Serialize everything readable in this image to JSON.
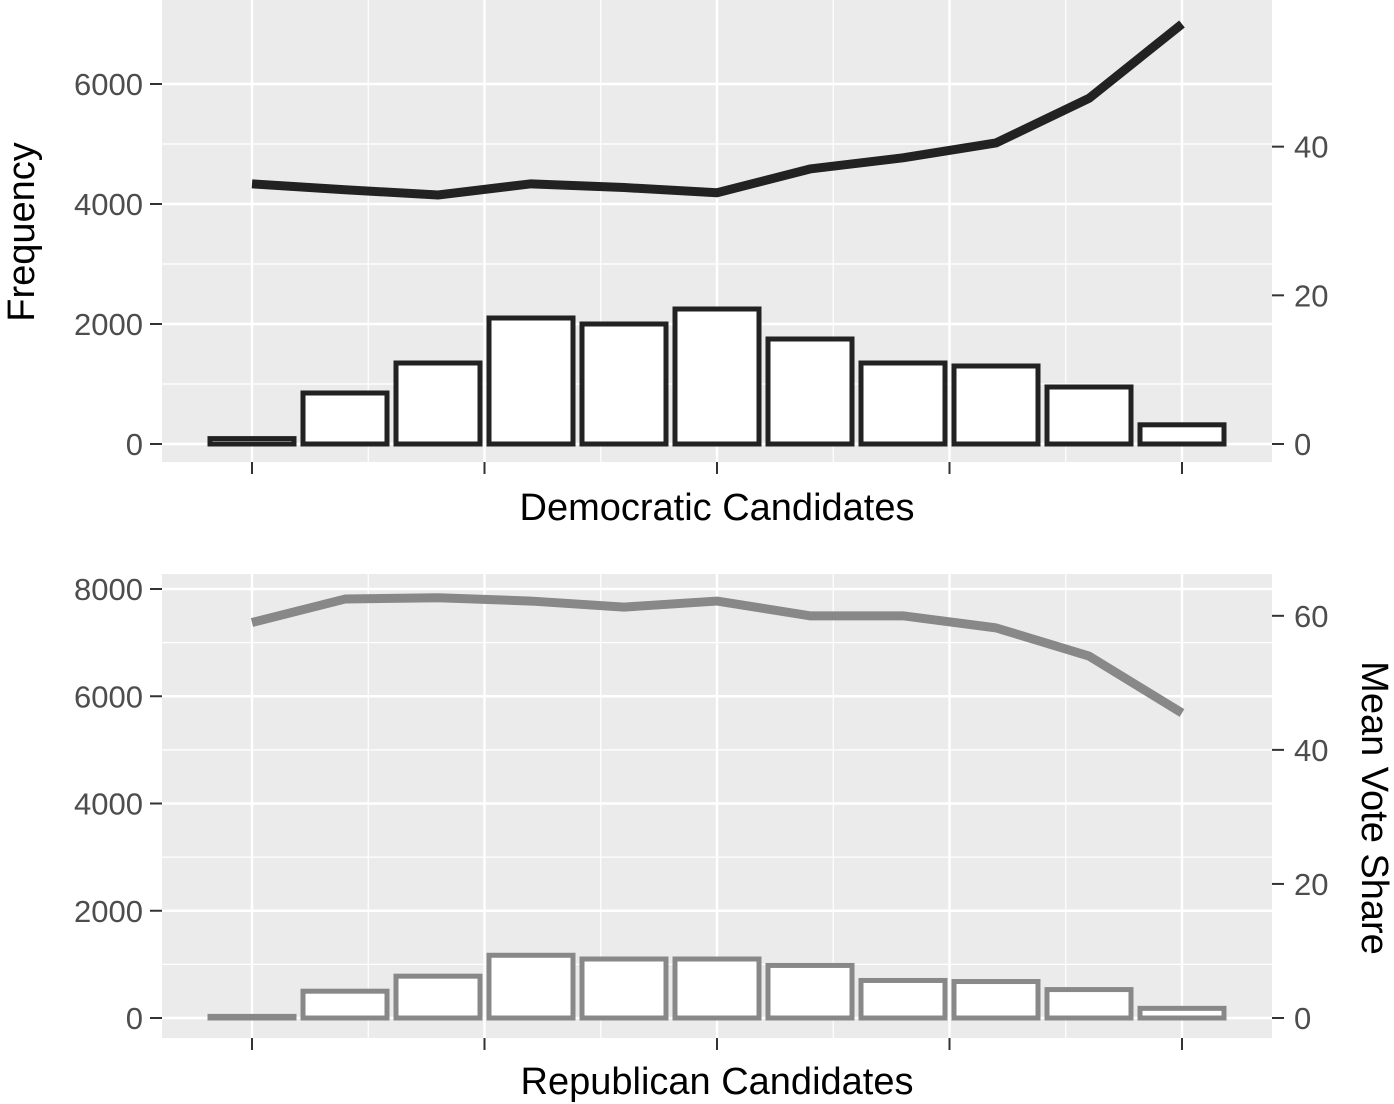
{
  "figure": {
    "left_axis_title": "Frequency",
    "right_axis_title": "Mean Vote Share"
  },
  "chart_data": [
    {
      "type": "bar",
      "panel": "top",
      "xlabel": "Democratic Candidates",
      "ylabel": "Frequency",
      "ylim": [
        0,
        7000
      ],
      "yticks": [
        0,
        2000,
        4000,
        6000
      ],
      "y2label": "Mean Vote Share",
      "y2lim": [
        0,
        56.5
      ],
      "y2ticks": [
        0,
        20,
        40
      ],
      "bins": 11,
      "x_breaks": [
        0,
        2.5,
        5,
        7.5,
        10
      ],
      "bar_values": [
        90,
        850,
        1350,
        2100,
        2000,
        2250,
        1750,
        1350,
        1300,
        950,
        320
      ],
      "line_values": [
        35,
        34.2,
        33.5,
        35,
        34.5,
        33.8,
        37,
        38.5,
        40.5,
        46.5,
        56.5
      ],
      "grid": true,
      "colors": {
        "outline": "#222222",
        "fill": "#ffffff",
        "line": "#222222",
        "panel": "#ebebeb",
        "grid": "#ffffff"
      }
    },
    {
      "type": "bar",
      "panel": "bottom",
      "xlabel": "Republican Candidates",
      "ylabel": "",
      "ylim": [
        0,
        8000
      ],
      "yticks": [
        0,
        2000,
        4000,
        6000,
        8000
      ],
      "y2label": "Mean Vote Share",
      "y2lim": [
        0,
        64
      ],
      "y2ticks": [
        0,
        20,
        40,
        60
      ],
      "bins": 11,
      "x_breaks": [
        0,
        2.5,
        5,
        7.5,
        10
      ],
      "bar_values": [
        30,
        500,
        780,
        1170,
        1100,
        1100,
        980,
        700,
        680,
        530,
        180
      ],
      "line_values": [
        59,
        62.5,
        62.7,
        62.2,
        61.3,
        62.2,
        60,
        60,
        58.2,
        54,
        45.5
      ],
      "grid": true,
      "colors": {
        "outline": "#888888",
        "fill": "#ffffff",
        "line": "#888888",
        "panel": "#ebebeb",
        "grid": "#ffffff"
      }
    }
  ]
}
